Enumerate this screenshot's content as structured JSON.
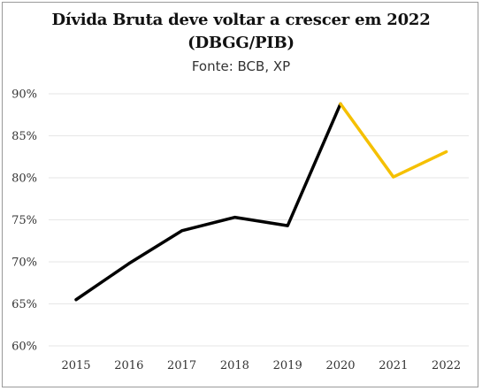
{
  "title_line1": "Dívida Bruta deve voltar a crescer em 2022",
  "title_line2": "(DBGG/PIB)",
  "subtitle": "Fonte: BCB, XP",
  "colors": {
    "historical": "#000000",
    "projection": "#f5c000",
    "grid": "#e6e6e6"
  },
  "chart_data": {
    "type": "line",
    "title": "Dívida Bruta deve voltar a crescer em 2022 (DBGG/PIB)",
    "subtitle": "Fonte: BCB, XP",
    "xlabel": "",
    "ylabel": "",
    "grid": true,
    "ylim": [
      60,
      90
    ],
    "yticks": [
      60,
      65,
      70,
      75,
      80,
      85,
      90
    ],
    "ytick_labels": [
      "60%",
      "65%",
      "70%",
      "75%",
      "80%",
      "85%",
      "90%"
    ],
    "x": [
      "2015",
      "2016",
      "2017",
      "2018",
      "2019",
      "2020",
      "2021",
      "2022"
    ],
    "series": [
      {
        "values": [
          65.5,
          69.8,
          73.7,
          75.3,
          74.3,
          88.8,
          null,
          null
        ],
        "color": "#000000"
      },
      {
        "values": [
          null,
          null,
          null,
          null,
          null,
          88.8,
          80.1,
          83.1
        ],
        "color": "#f5c000"
      }
    ]
  }
}
